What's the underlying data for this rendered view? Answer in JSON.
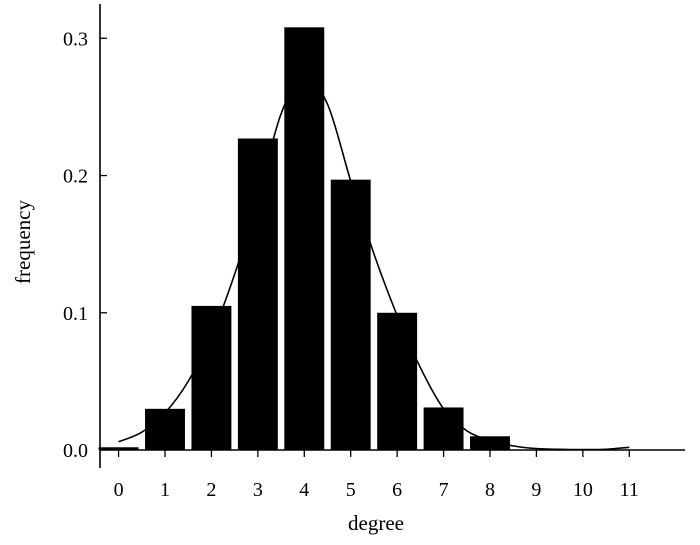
{
  "chart_data": {
    "type": "bar",
    "title": "",
    "xlabel": "degree",
    "ylabel": "frequency",
    "categories": [
      0,
      1,
      2,
      3,
      4,
      5,
      6,
      7,
      8
    ],
    "values": [
      0.002,
      0.03,
      0.105,
      0.227,
      0.308,
      0.197,
      0.1,
      0.031,
      0.01
    ],
    "fitted_curve": {
      "x": [
        0,
        0.5,
        1,
        1.5,
        2,
        2.5,
        3,
        3.5,
        4,
        4.5,
        5,
        5.5,
        6,
        6.5,
        7,
        7.5,
        8,
        8.5,
        9,
        9.5,
        10,
        10.5,
        11
      ],
      "y": [
        0.006,
        0.013,
        0.027,
        0.05,
        0.083,
        0.128,
        0.183,
        0.245,
        0.272,
        0.252,
        0.196,
        0.143,
        0.098,
        0.06,
        0.03,
        0.014,
        0.007,
        0.003,
        0.001,
        0.0005,
        0.0003,
        0.0005,
        0.002
      ]
    },
    "xticks": [
      "0",
      "1",
      "2",
      "3",
      "4",
      "5",
      "6",
      "7",
      "8",
      "9",
      "10",
      "11"
    ],
    "yticks": [
      "0.0",
      "0.1",
      "0.2",
      "0.3"
    ],
    "xlim": [
      -0.4,
      12.2
    ],
    "ylim": [
      0,
      0.325
    ],
    "legend": "none",
    "grid": false,
    "colors": {
      "bar": "#000000",
      "curve": "#000000",
      "axis": "#000000"
    }
  }
}
